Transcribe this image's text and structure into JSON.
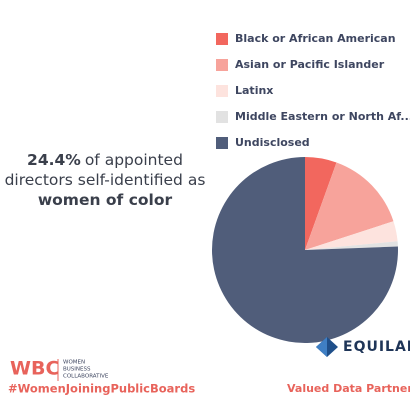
{
  "chart_data": {
    "type": "pie",
    "categories": [
      "Black or African American",
      "Asian or Pacific Islander",
      "Latinx",
      "Middle Eastern or North Af...",
      "Undisclosed"
    ],
    "values": [
      5.5,
      14.5,
      3.5,
      0.9,
      75.6
    ],
    "colors": [
      "#f2675e",
      "#f7a39b",
      "#fde3de",
      "#e2e2e2",
      "#505d7a"
    ]
  },
  "headline": [
    "24.4%",
    "of appointed",
    "directors self-identified as",
    "women of color"
  ],
  "footer": {
    "logo": "WBC",
    "logo_words": [
      "WOMEN",
      "BUSINESS",
      "COLLABORATIVE"
    ],
    "hashtag": "#WomenJoiningPublicBoards",
    "partner": "EQUILAR",
    "partner_tagline": "Valued Data Partner"
  }
}
